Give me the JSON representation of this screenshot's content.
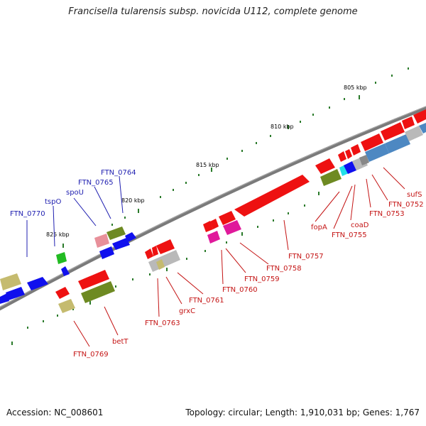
{
  "title": "Francisella tularensis subsp. novicida U112, complete genome",
  "footer": {
    "accession": "Accession: NC_008601",
    "stats": "Topology: circular; Length: 1,910,031 bp; Genes: 1,767"
  },
  "colors": {
    "red": "#ee1111",
    "pink": "#e8909a",
    "magenta": "#e0199b",
    "olive": "#6e8a22",
    "khaki": "#c5bb6f",
    "blue": "#1010ee",
    "steel": "#4d88c2",
    "gray": "#b9b9b9",
    "green": "#22bb22",
    "cyan": "#22e0e8",
    "label_blue": "#1f1fb0",
    "label_red": "#c41414"
  },
  "kbp_markers": [
    "805 kbp",
    "810 kbp",
    "815 kbp",
    "820 kbp",
    "825 kbp"
  ],
  "labels_top": [
    "FTN_0770",
    "tspO",
    "spoU",
    "FTN_0765",
    "FTN_0764"
  ],
  "labels_bottom": [
    "FTN_0769",
    "betT",
    "FTN_0763",
    "grxC",
    "FTN_0761",
    "FTN_0760",
    "FTN_0759",
    "FTN_0758",
    "FTN_0757",
    "fopA",
    "FTN_0755",
    "coaD",
    "FTN_0753",
    "FTN_0752",
    "sufS"
  ]
}
